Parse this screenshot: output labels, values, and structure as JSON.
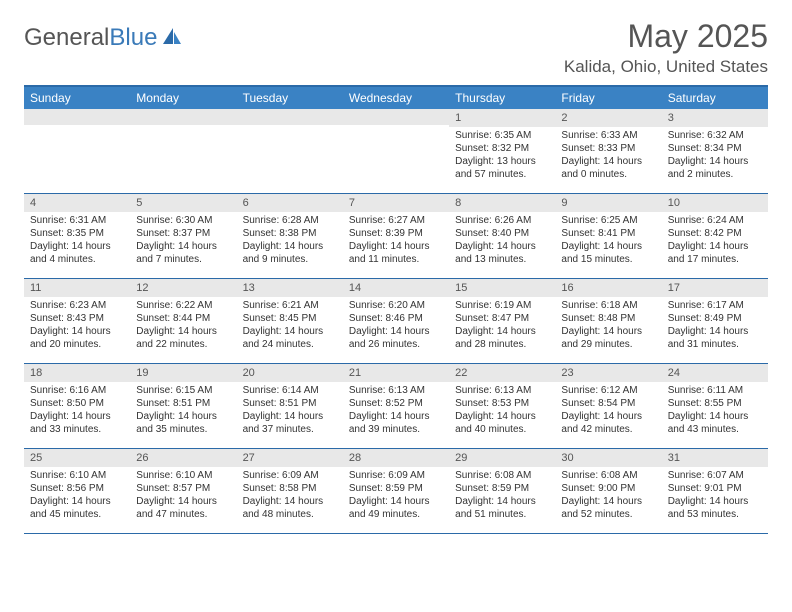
{
  "logo": {
    "part1": "General",
    "part2": "Blue"
  },
  "title": "May 2025",
  "location": "Kalida, Ohio, United States",
  "colors": {
    "header_bg": "#3a82c4",
    "border": "#2b6aa8",
    "daynum_bg": "#e8e8e8",
    "text": "#333333",
    "logo_blue": "#3a7ab8"
  },
  "weekdays": [
    "Sunday",
    "Monday",
    "Tuesday",
    "Wednesday",
    "Thursday",
    "Friday",
    "Saturday"
  ],
  "weeks": [
    [
      {
        "num": "",
        "sunrise": "",
        "sunset": "",
        "daylight": ""
      },
      {
        "num": "",
        "sunrise": "",
        "sunset": "",
        "daylight": ""
      },
      {
        "num": "",
        "sunrise": "",
        "sunset": "",
        "daylight": ""
      },
      {
        "num": "",
        "sunrise": "",
        "sunset": "",
        "daylight": ""
      },
      {
        "num": "1",
        "sunrise": "Sunrise: 6:35 AM",
        "sunset": "Sunset: 8:32 PM",
        "daylight": "Daylight: 13 hours and 57 minutes."
      },
      {
        "num": "2",
        "sunrise": "Sunrise: 6:33 AM",
        "sunset": "Sunset: 8:33 PM",
        "daylight": "Daylight: 14 hours and 0 minutes."
      },
      {
        "num": "3",
        "sunrise": "Sunrise: 6:32 AM",
        "sunset": "Sunset: 8:34 PM",
        "daylight": "Daylight: 14 hours and 2 minutes."
      }
    ],
    [
      {
        "num": "4",
        "sunrise": "Sunrise: 6:31 AM",
        "sunset": "Sunset: 8:35 PM",
        "daylight": "Daylight: 14 hours and 4 minutes."
      },
      {
        "num": "5",
        "sunrise": "Sunrise: 6:30 AM",
        "sunset": "Sunset: 8:37 PM",
        "daylight": "Daylight: 14 hours and 7 minutes."
      },
      {
        "num": "6",
        "sunrise": "Sunrise: 6:28 AM",
        "sunset": "Sunset: 8:38 PM",
        "daylight": "Daylight: 14 hours and 9 minutes."
      },
      {
        "num": "7",
        "sunrise": "Sunrise: 6:27 AM",
        "sunset": "Sunset: 8:39 PM",
        "daylight": "Daylight: 14 hours and 11 minutes."
      },
      {
        "num": "8",
        "sunrise": "Sunrise: 6:26 AM",
        "sunset": "Sunset: 8:40 PM",
        "daylight": "Daylight: 14 hours and 13 minutes."
      },
      {
        "num": "9",
        "sunrise": "Sunrise: 6:25 AM",
        "sunset": "Sunset: 8:41 PM",
        "daylight": "Daylight: 14 hours and 15 minutes."
      },
      {
        "num": "10",
        "sunrise": "Sunrise: 6:24 AM",
        "sunset": "Sunset: 8:42 PM",
        "daylight": "Daylight: 14 hours and 17 minutes."
      }
    ],
    [
      {
        "num": "11",
        "sunrise": "Sunrise: 6:23 AM",
        "sunset": "Sunset: 8:43 PM",
        "daylight": "Daylight: 14 hours and 20 minutes."
      },
      {
        "num": "12",
        "sunrise": "Sunrise: 6:22 AM",
        "sunset": "Sunset: 8:44 PM",
        "daylight": "Daylight: 14 hours and 22 minutes."
      },
      {
        "num": "13",
        "sunrise": "Sunrise: 6:21 AM",
        "sunset": "Sunset: 8:45 PM",
        "daylight": "Daylight: 14 hours and 24 minutes."
      },
      {
        "num": "14",
        "sunrise": "Sunrise: 6:20 AM",
        "sunset": "Sunset: 8:46 PM",
        "daylight": "Daylight: 14 hours and 26 minutes."
      },
      {
        "num": "15",
        "sunrise": "Sunrise: 6:19 AM",
        "sunset": "Sunset: 8:47 PM",
        "daylight": "Daylight: 14 hours and 28 minutes."
      },
      {
        "num": "16",
        "sunrise": "Sunrise: 6:18 AM",
        "sunset": "Sunset: 8:48 PM",
        "daylight": "Daylight: 14 hours and 29 minutes."
      },
      {
        "num": "17",
        "sunrise": "Sunrise: 6:17 AM",
        "sunset": "Sunset: 8:49 PM",
        "daylight": "Daylight: 14 hours and 31 minutes."
      }
    ],
    [
      {
        "num": "18",
        "sunrise": "Sunrise: 6:16 AM",
        "sunset": "Sunset: 8:50 PM",
        "daylight": "Daylight: 14 hours and 33 minutes."
      },
      {
        "num": "19",
        "sunrise": "Sunrise: 6:15 AM",
        "sunset": "Sunset: 8:51 PM",
        "daylight": "Daylight: 14 hours and 35 minutes."
      },
      {
        "num": "20",
        "sunrise": "Sunrise: 6:14 AM",
        "sunset": "Sunset: 8:51 PM",
        "daylight": "Daylight: 14 hours and 37 minutes."
      },
      {
        "num": "21",
        "sunrise": "Sunrise: 6:13 AM",
        "sunset": "Sunset: 8:52 PM",
        "daylight": "Daylight: 14 hours and 39 minutes."
      },
      {
        "num": "22",
        "sunrise": "Sunrise: 6:13 AM",
        "sunset": "Sunset: 8:53 PM",
        "daylight": "Daylight: 14 hours and 40 minutes."
      },
      {
        "num": "23",
        "sunrise": "Sunrise: 6:12 AM",
        "sunset": "Sunset: 8:54 PM",
        "daylight": "Daylight: 14 hours and 42 minutes."
      },
      {
        "num": "24",
        "sunrise": "Sunrise: 6:11 AM",
        "sunset": "Sunset: 8:55 PM",
        "daylight": "Daylight: 14 hours and 43 minutes."
      }
    ],
    [
      {
        "num": "25",
        "sunrise": "Sunrise: 6:10 AM",
        "sunset": "Sunset: 8:56 PM",
        "daylight": "Daylight: 14 hours and 45 minutes."
      },
      {
        "num": "26",
        "sunrise": "Sunrise: 6:10 AM",
        "sunset": "Sunset: 8:57 PM",
        "daylight": "Daylight: 14 hours and 47 minutes."
      },
      {
        "num": "27",
        "sunrise": "Sunrise: 6:09 AM",
        "sunset": "Sunset: 8:58 PM",
        "daylight": "Daylight: 14 hours and 48 minutes."
      },
      {
        "num": "28",
        "sunrise": "Sunrise: 6:09 AM",
        "sunset": "Sunset: 8:59 PM",
        "daylight": "Daylight: 14 hours and 49 minutes."
      },
      {
        "num": "29",
        "sunrise": "Sunrise: 6:08 AM",
        "sunset": "Sunset: 8:59 PM",
        "daylight": "Daylight: 14 hours and 51 minutes."
      },
      {
        "num": "30",
        "sunrise": "Sunrise: 6:08 AM",
        "sunset": "Sunset: 9:00 PM",
        "daylight": "Daylight: 14 hours and 52 minutes."
      },
      {
        "num": "31",
        "sunrise": "Sunrise: 6:07 AM",
        "sunset": "Sunset: 9:01 PM",
        "daylight": "Daylight: 14 hours and 53 minutes."
      }
    ]
  ]
}
